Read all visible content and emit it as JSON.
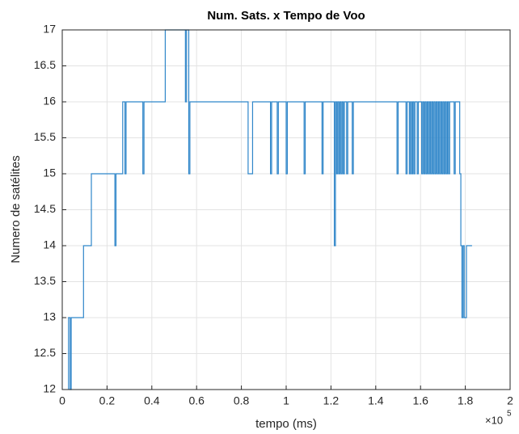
{
  "chart_data": {
    "type": "line",
    "title": "Num. Sats. x Tempo de Voo",
    "x_label": "tempo (ms)",
    "y_label": "Numero de satélites",
    "x_multiplier": {
      "base": "×10",
      "exponent": "5"
    },
    "xlim": [
      0,
      200000
    ],
    "ylim": [
      12,
      17
    ],
    "xticks": [
      0,
      {
        "value": 20000,
        "label": "0.2"
      },
      {
        "value": 40000,
        "label": "0.4"
      },
      {
        "value": 60000,
        "label": "0.6"
      },
      {
        "value": 80000,
        "label": "0.8"
      },
      {
        "value": 100000,
        "label": "1"
      },
      {
        "value": 120000,
        "label": "1.2"
      },
      {
        "value": 140000,
        "label": "1.4"
      },
      {
        "value": 160000,
        "label": "1.6"
      },
      {
        "value": 180000,
        "label": "1.8"
      },
      {
        "value": 200000,
        "label": "2"
      }
    ],
    "yticks": [
      12,
      12.5,
      13,
      13.5,
      14,
      14.5,
      15,
      15.5,
      16,
      16.5,
      17
    ],
    "grid": true,
    "series": [
      {
        "color": "#2f86c9",
        "x": [
          2800,
          2800,
          3500,
          3500,
          4000,
          4000,
          9500,
          9500,
          13000,
          13000,
          23500,
          23500,
          24000,
          24000,
          27000,
          27000,
          28000,
          28000,
          28500,
          28500,
          36000,
          36000,
          36500,
          36500,
          46000,
          46000,
          55000,
          55000,
          55500,
          55500,
          56500,
          56500,
          57000,
          57000,
          83000,
          83000,
          85000,
          85000,
          93000,
          93000,
          93500,
          93500,
          96000,
          96000,
          96500,
          96500,
          100000,
          100000,
          100500,
          100500,
          108000,
          108000,
          108500,
          108500,
          116000,
          116000,
          116500,
          116500,
          121500,
          121500,
          122000,
          122000,
          122500,
          122500,
          123000,
          123000,
          123500,
          123500,
          124000,
          124000,
          124500,
          124500,
          125000,
          125000,
          125500,
          125500,
          126000,
          126000,
          127000,
          127000,
          127500,
          127500,
          129500,
          129500,
          130000,
          130000,
          149500,
          149500,
          150000,
          150000,
          153500,
          153500,
          154000,
          154000,
          155000,
          155000,
          155500,
          155500,
          156000,
          156000,
          156500,
          156500,
          157000,
          157000,
          157500,
          157500,
          158500,
          158500,
          159000,
          159000,
          160500,
          160500,
          161000,
          161000,
          161500,
          161500,
          162000,
          162000,
          162500,
          162500,
          163000,
          163000,
          163500,
          163500,
          164000,
          164000,
          164500,
          164500,
          165000,
          165000,
          165500,
          165500,
          166000,
          166000,
          166500,
          166500,
          167000,
          167000,
          167500,
          167500,
          168000,
          168000,
          168500,
          168500,
          169000,
          169000,
          169500,
          169500,
          170000,
          170000,
          170500,
          170500,
          171000,
          171000,
          171500,
          171500,
          172000,
          172000,
          172500,
          172500,
          173000,
          173000,
          175000,
          175000,
          175500,
          175500,
          177500,
          177500,
          178000,
          178000,
          178500,
          178500,
          179000,
          179000,
          179500,
          179500,
          180500,
          180500,
          183000
        ],
        "values": [
          12,
          13,
          13,
          12,
          12,
          13,
          13,
          14,
          14,
          15,
          15,
          14,
          14,
          15,
          15,
          16,
          16,
          15,
          15,
          16,
          16,
          15,
          15,
          16,
          16,
          17,
          17,
          16,
          16,
          17,
          17,
          15,
          15,
          16,
          16,
          15,
          15,
          16,
          16,
          15,
          15,
          16,
          16,
          15,
          15,
          16,
          16,
          15,
          15,
          16,
          16,
          15,
          15,
          16,
          16,
          15,
          15,
          16,
          16,
          14,
          14,
          16,
          16,
          15,
          15,
          16,
          16,
          15,
          15,
          16,
          16,
          15,
          15,
          16,
          16,
          15,
          15,
          16,
          16,
          15,
          15,
          16,
          16,
          15,
          15,
          16,
          16,
          15,
          15,
          16,
          16,
          15,
          15,
          16,
          16,
          15,
          15,
          16,
          16,
          15,
          15,
          16,
          16,
          15,
          15,
          16,
          16,
          15,
          15,
          16,
          16,
          15,
          15,
          16,
          16,
          15,
          15,
          16,
          16,
          15,
          15,
          16,
          16,
          15,
          15,
          16,
          16,
          15,
          15,
          16,
          16,
          15,
          15,
          16,
          16,
          15,
          15,
          16,
          16,
          15,
          15,
          16,
          16,
          15,
          15,
          16,
          16,
          15,
          15,
          16,
          16,
          15,
          15,
          16,
          16,
          15,
          15,
          16,
          16,
          15,
          15,
          16,
          16,
          15,
          15,
          16,
          16,
          15,
          15,
          14,
          14,
          13,
          13,
          14,
          14,
          13,
          13,
          14,
          14
        ]
      }
    ]
  }
}
